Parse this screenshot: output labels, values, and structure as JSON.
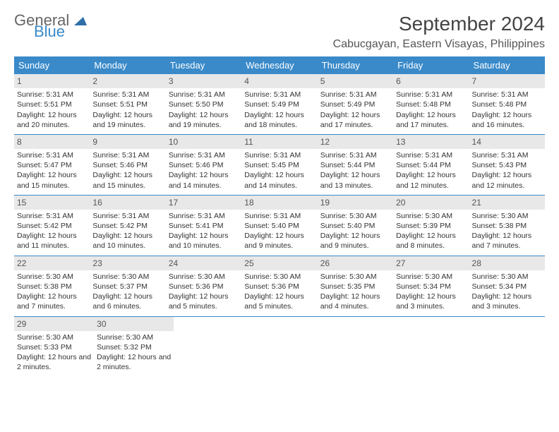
{
  "logo": {
    "word1": "General",
    "word2": "Blue"
  },
  "title": "September 2024",
  "location": "Cabucgayan, Eastern Visayas, Philippines",
  "colors": {
    "accent": "#3a8ac9",
    "band": "#e8e8e8",
    "text": "#333333",
    "muted": "#555555",
    "bg": "#ffffff"
  },
  "day_headers": [
    "Sunday",
    "Monday",
    "Tuesday",
    "Wednesday",
    "Thursday",
    "Friday",
    "Saturday"
  ],
  "weeks": [
    [
      {
        "n": "1",
        "sr": "Sunrise: 5:31 AM",
        "ss": "Sunset: 5:51 PM",
        "dl": "Daylight: 12 hours and 20 minutes."
      },
      {
        "n": "2",
        "sr": "Sunrise: 5:31 AM",
        "ss": "Sunset: 5:51 PM",
        "dl": "Daylight: 12 hours and 19 minutes."
      },
      {
        "n": "3",
        "sr": "Sunrise: 5:31 AM",
        "ss": "Sunset: 5:50 PM",
        "dl": "Daylight: 12 hours and 19 minutes."
      },
      {
        "n": "4",
        "sr": "Sunrise: 5:31 AM",
        "ss": "Sunset: 5:49 PM",
        "dl": "Daylight: 12 hours and 18 minutes."
      },
      {
        "n": "5",
        "sr": "Sunrise: 5:31 AM",
        "ss": "Sunset: 5:49 PM",
        "dl": "Daylight: 12 hours and 17 minutes."
      },
      {
        "n": "6",
        "sr": "Sunrise: 5:31 AM",
        "ss": "Sunset: 5:48 PM",
        "dl": "Daylight: 12 hours and 17 minutes."
      },
      {
        "n": "7",
        "sr": "Sunrise: 5:31 AM",
        "ss": "Sunset: 5:48 PM",
        "dl": "Daylight: 12 hours and 16 minutes."
      }
    ],
    [
      {
        "n": "8",
        "sr": "Sunrise: 5:31 AM",
        "ss": "Sunset: 5:47 PM",
        "dl": "Daylight: 12 hours and 15 minutes."
      },
      {
        "n": "9",
        "sr": "Sunrise: 5:31 AM",
        "ss": "Sunset: 5:46 PM",
        "dl": "Daylight: 12 hours and 15 minutes."
      },
      {
        "n": "10",
        "sr": "Sunrise: 5:31 AM",
        "ss": "Sunset: 5:46 PM",
        "dl": "Daylight: 12 hours and 14 minutes."
      },
      {
        "n": "11",
        "sr": "Sunrise: 5:31 AM",
        "ss": "Sunset: 5:45 PM",
        "dl": "Daylight: 12 hours and 14 minutes."
      },
      {
        "n": "12",
        "sr": "Sunrise: 5:31 AM",
        "ss": "Sunset: 5:44 PM",
        "dl": "Daylight: 12 hours and 13 minutes."
      },
      {
        "n": "13",
        "sr": "Sunrise: 5:31 AM",
        "ss": "Sunset: 5:44 PM",
        "dl": "Daylight: 12 hours and 12 minutes."
      },
      {
        "n": "14",
        "sr": "Sunrise: 5:31 AM",
        "ss": "Sunset: 5:43 PM",
        "dl": "Daylight: 12 hours and 12 minutes."
      }
    ],
    [
      {
        "n": "15",
        "sr": "Sunrise: 5:31 AM",
        "ss": "Sunset: 5:42 PM",
        "dl": "Daylight: 12 hours and 11 minutes."
      },
      {
        "n": "16",
        "sr": "Sunrise: 5:31 AM",
        "ss": "Sunset: 5:42 PM",
        "dl": "Daylight: 12 hours and 10 minutes."
      },
      {
        "n": "17",
        "sr": "Sunrise: 5:31 AM",
        "ss": "Sunset: 5:41 PM",
        "dl": "Daylight: 12 hours and 10 minutes."
      },
      {
        "n": "18",
        "sr": "Sunrise: 5:31 AM",
        "ss": "Sunset: 5:40 PM",
        "dl": "Daylight: 12 hours and 9 minutes."
      },
      {
        "n": "19",
        "sr": "Sunrise: 5:30 AM",
        "ss": "Sunset: 5:40 PM",
        "dl": "Daylight: 12 hours and 9 minutes."
      },
      {
        "n": "20",
        "sr": "Sunrise: 5:30 AM",
        "ss": "Sunset: 5:39 PM",
        "dl": "Daylight: 12 hours and 8 minutes."
      },
      {
        "n": "21",
        "sr": "Sunrise: 5:30 AM",
        "ss": "Sunset: 5:38 PM",
        "dl": "Daylight: 12 hours and 7 minutes."
      }
    ],
    [
      {
        "n": "22",
        "sr": "Sunrise: 5:30 AM",
        "ss": "Sunset: 5:38 PM",
        "dl": "Daylight: 12 hours and 7 minutes."
      },
      {
        "n": "23",
        "sr": "Sunrise: 5:30 AM",
        "ss": "Sunset: 5:37 PM",
        "dl": "Daylight: 12 hours and 6 minutes."
      },
      {
        "n": "24",
        "sr": "Sunrise: 5:30 AM",
        "ss": "Sunset: 5:36 PM",
        "dl": "Daylight: 12 hours and 5 minutes."
      },
      {
        "n": "25",
        "sr": "Sunrise: 5:30 AM",
        "ss": "Sunset: 5:36 PM",
        "dl": "Daylight: 12 hours and 5 minutes."
      },
      {
        "n": "26",
        "sr": "Sunrise: 5:30 AM",
        "ss": "Sunset: 5:35 PM",
        "dl": "Daylight: 12 hours and 4 minutes."
      },
      {
        "n": "27",
        "sr": "Sunrise: 5:30 AM",
        "ss": "Sunset: 5:34 PM",
        "dl": "Daylight: 12 hours and 3 minutes."
      },
      {
        "n": "28",
        "sr": "Sunrise: 5:30 AM",
        "ss": "Sunset: 5:34 PM",
        "dl": "Daylight: 12 hours and 3 minutes."
      }
    ],
    [
      {
        "n": "29",
        "sr": "Sunrise: 5:30 AM",
        "ss": "Sunset: 5:33 PM",
        "dl": "Daylight: 12 hours and 2 minutes."
      },
      {
        "n": "30",
        "sr": "Sunrise: 5:30 AM",
        "ss": "Sunset: 5:32 PM",
        "dl": "Daylight: 12 hours and 2 minutes."
      },
      null,
      null,
      null,
      null,
      null
    ]
  ]
}
